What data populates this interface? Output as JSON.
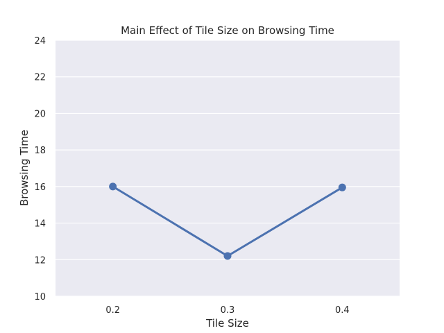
{
  "chart_data": {
    "type": "line",
    "title": "Main Effect of Tile Size on Browsing Time",
    "xlabel": "Tile Size",
    "ylabel": "Browsing Time",
    "categories": [
      "0.2",
      "0.3",
      "0.4"
    ],
    "series": [
      {
        "values": [
          16.0,
          12.2,
          15.95
        ]
      }
    ],
    "ylim": [
      10,
      24
    ],
    "yticks": [
      10,
      12,
      14,
      16,
      18,
      20,
      22,
      24
    ],
    "grid": true,
    "colors": {
      "line": "#4c72b0",
      "plot_bg": "#eaeaf2",
      "grid": "#ffffff"
    }
  }
}
